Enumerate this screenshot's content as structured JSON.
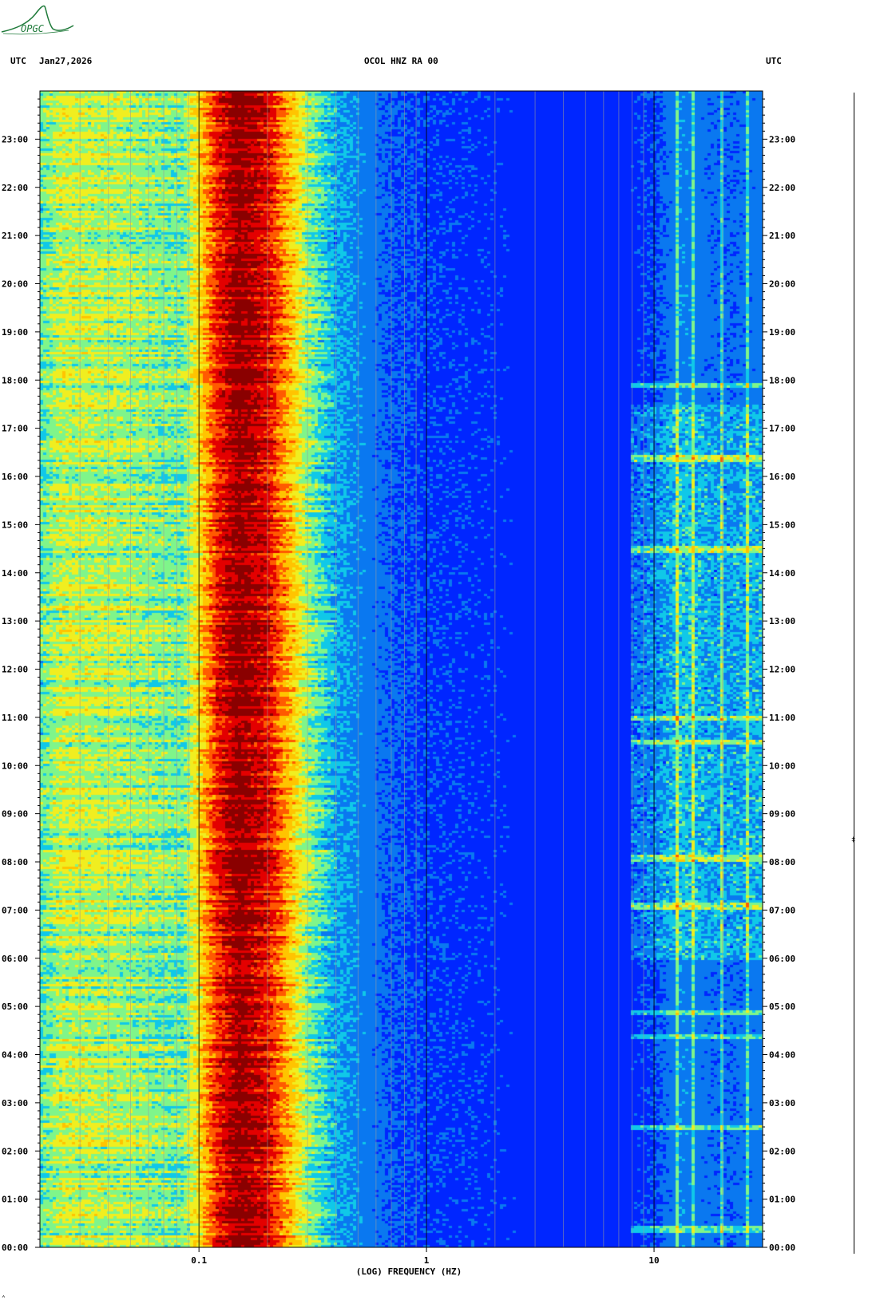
{
  "header": {
    "left_timezone": "UTC",
    "date": "Jan27,2026",
    "station": "OCOL HNZ RA 00",
    "right_timezone": "UTC"
  },
  "logo": {
    "text": "OPGC",
    "color": "#1f7a3a"
  },
  "colors": {
    "palette": [
      "#0000c0",
      "#0026ff",
      "#0a78f0",
      "#10c8e8",
      "#7ff58a",
      "#f0ee20",
      "#ffc400",
      "#ff5a00",
      "#e30000",
      "#8a0000"
    ]
  },
  "chart_data": {
    "type": "heatmap",
    "title": "OCOL HNZ RA 00",
    "xlabel": "(LOG) FREQUENCY (HZ)",
    "ylabel": "UTC",
    "x_scale": "log",
    "xlim": [
      0.02,
      30
    ],
    "x_ticks": [
      {
        "value": 0.1,
        "label": "0.1"
      },
      {
        "value": 1,
        "label": "1"
      },
      {
        "value": 10,
        "label": "10"
      }
    ],
    "y_ticks": [
      "00:00",
      "01:00",
      "02:00",
      "03:00",
      "04:00",
      "05:00",
      "06:00",
      "07:00",
      "08:00",
      "09:00",
      "10:00",
      "11:00",
      "12:00",
      "13:00",
      "14:00",
      "15:00",
      "16:00",
      "17:00",
      "18:00",
      "19:00",
      "20:00",
      "21:00",
      "22:00",
      "23:00"
    ],
    "ylim_hours": [
      0,
      24
    ],
    "grid": true,
    "spectrum_profile": [
      {
        "f": 0.02,
        "level": 3.6
      },
      {
        "f": 0.025,
        "level": 4.6
      },
      {
        "f": 0.05,
        "level": 4.3
      },
      {
        "f": 0.085,
        "level": 3.8
      },
      {
        "f": 0.1,
        "level": 5.4
      },
      {
        "f": 0.12,
        "level": 7.6
      },
      {
        "f": 0.15,
        "level": 9.0
      },
      {
        "f": 0.2,
        "level": 8.0
      },
      {
        "f": 0.25,
        "level": 6.0
      },
      {
        "f": 0.3,
        "level": 4.2
      },
      {
        "f": 0.4,
        "level": 2.6
      },
      {
        "f": 0.7,
        "level": 1.6
      },
      {
        "f": 1.0,
        "level": 1.3
      },
      {
        "f": 3.0,
        "level": 1.0
      },
      {
        "f": 8.0,
        "level": 1.05
      },
      {
        "f": 10.0,
        "level": 1.4
      },
      {
        "f": 13.0,
        "level": 2.2
      },
      {
        "f": 20.0,
        "level": 1.7
      },
      {
        "f": 30.0,
        "level": 2.0
      }
    ],
    "line_frequencies": [
      12.8,
      15.0,
      20.0,
      25.5
    ],
    "activity_hours": [
      6.0,
      17.5
    ],
    "event_hours": [
      0.4,
      2.5,
      4.4,
      4.9,
      7.1,
      8.1,
      10.5,
      11.0,
      14.5,
      16.4,
      17.9
    ]
  }
}
